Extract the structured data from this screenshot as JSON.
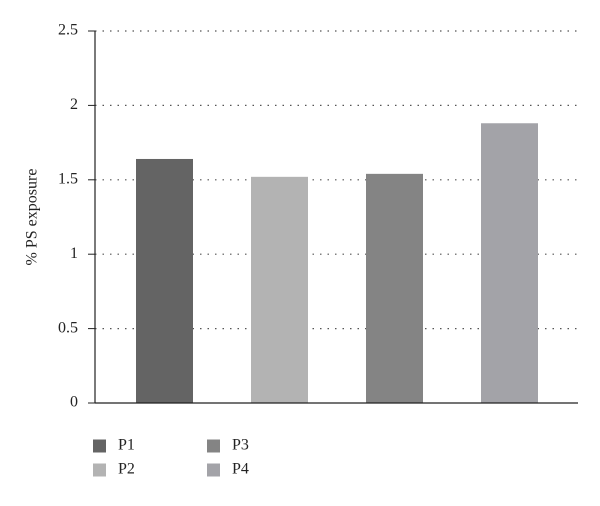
{
  "chart_data": {
    "type": "bar",
    "y_label": "% PS exposure",
    "categories": [
      "P1",
      "P2",
      "P3",
      "P4"
    ],
    "values": [
      1.64,
      1.52,
      1.54,
      1.88
    ],
    "colors": [
      "#646464",
      "#b3b3b3",
      "#848484",
      "#a3a3a8"
    ],
    "ylim": [
      0,
      2.5
    ],
    "yticks": [
      0,
      0.5,
      1,
      1.5,
      2,
      2.5
    ],
    "grid": true
  }
}
